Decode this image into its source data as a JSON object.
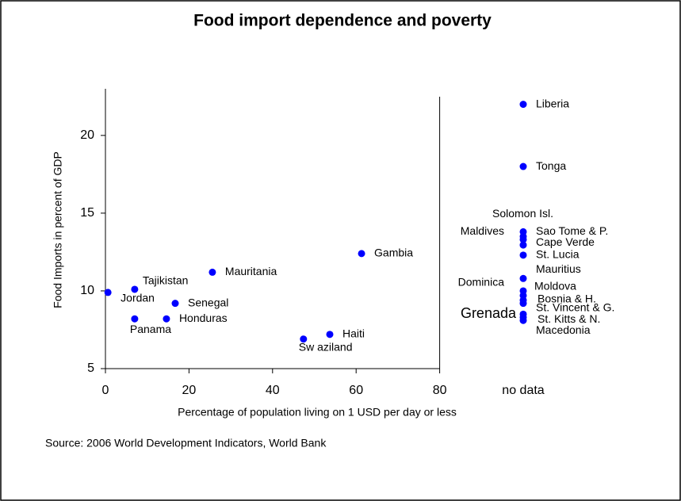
{
  "chart_data": {
    "type": "scatter",
    "title": "Food import dependence and poverty",
    "x_label": "Percentage of population living on 1 USD per day or less",
    "y_label": "Food Imports in percent of GDP",
    "source": "Source: 2006 World Development Indicators, World Bank",
    "color": "#0000ff",
    "xlim": [
      0,
      100
    ],
    "ylim": [
      5,
      23
    ],
    "xticks": [
      0,
      20,
      40,
      60,
      80,
      {
        "value": 100,
        "label": "no data"
      }
    ],
    "yticks": [
      5,
      10,
      15,
      20
    ],
    "labels": [
      "Jordan",
      "Tajikistan",
      "Panama",
      "Honduras",
      "Senegal",
      "Mauritania",
      "Gambia",
      "Sw aziland",
      "Haiti",
      "Liberia",
      "Tonga",
      "Solomon Isl.",
      "Maldives",
      "Sao Tome & P.",
      "Cape Verde",
      "St. Lucia",
      "Mauritius",
      "Dominica",
      "Moldova",
      "Bosnia & H.",
      "St. Vincent & G.",
      "Grenada",
      "St. Kitts & N.",
      "Macedonia"
    ],
    "x": [
      0.6,
      7.0,
      7.0,
      14.6,
      16.7,
      25.6,
      61.3,
      47.4,
      53.7,
      100,
      100,
      100,
      100,
      100,
      100,
      100,
      100,
      100,
      100,
      100,
      100,
      100,
      100,
      100
    ],
    "values": [
      9.9,
      10.1,
      8.2,
      8.2,
      9.2,
      11.2,
      12.4,
      6.9,
      7.2,
      22,
      18,
      13.5,
      13.3,
      13.8,
      12.95,
      12.3,
      10.8,
      10.0,
      9.7,
      9.4,
      9.2,
      8.5,
      8.3,
      8.1
    ]
  }
}
